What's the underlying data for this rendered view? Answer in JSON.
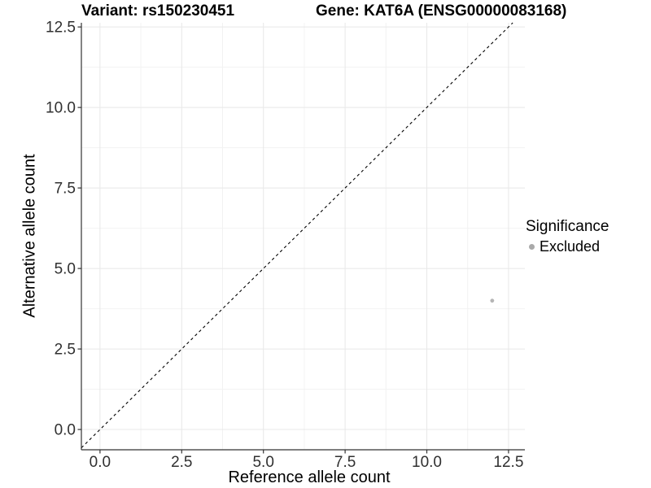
{
  "figure": {
    "title_left": "Variant: rs150230451",
    "title_right": "Gene: KAT6A (ENSG00000083168)"
  },
  "chart_data": {
    "type": "scatter",
    "title": "Variant: rs150230451    Gene: KAT6A (ENSG00000083168)",
    "xlabel": "Reference allele count",
    "ylabel": "Alternative allele count",
    "xlim": [
      -0.57,
      13.0
    ],
    "ylim": [
      -0.63,
      12.63
    ],
    "x_ticks": [
      0.0,
      2.5,
      5.0,
      7.5,
      10.0,
      12.5
    ],
    "y_ticks": [
      0.0,
      2.5,
      5.0,
      7.5,
      10.0,
      12.5
    ],
    "minor_tick_step": 1.25,
    "grid": true,
    "reference_line": {
      "type": "identity",
      "style": "dashed",
      "color": "#000000"
    },
    "series": [
      {
        "name": "Excluded",
        "color": "#b5b5b5",
        "point_radius": 2.4,
        "points": [
          {
            "x": 12,
            "y": 4
          }
        ]
      }
    ],
    "legend": {
      "title": "Significance",
      "position": "right",
      "items": [
        {
          "label": "Excluded",
          "color": "#a9a9a9"
        }
      ]
    },
    "style": {
      "panel_background": "#ffffff",
      "major_grid_color": "#e8e8e8",
      "minor_grid_color": "#f2f2f2",
      "axis_line_color": "#333333",
      "tick_label_color": "#303030"
    }
  }
}
